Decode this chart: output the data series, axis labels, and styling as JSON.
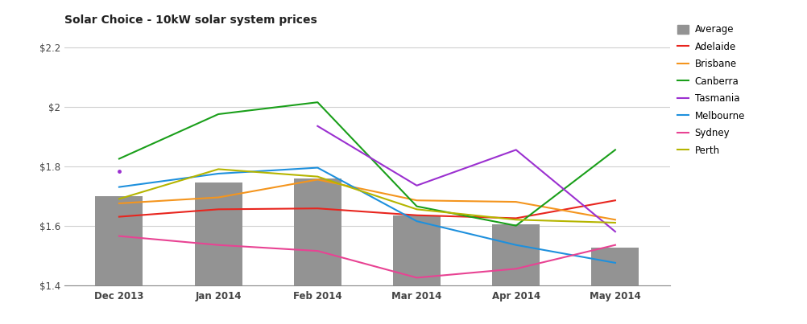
{
  "title": "Solar Choice - 10kW solar system prices",
  "x_labels": [
    "Dec 2013",
    "Jan 2014",
    "Feb 2014",
    "Mar 2014",
    "Apr 2014",
    "May 2014"
  ],
  "x_positions": [
    0,
    1,
    2,
    3,
    4,
    5
  ],
  "bar_values": [
    1.7,
    1.745,
    1.76,
    1.635,
    1.605,
    1.525
  ],
  "bar_color": "#939393",
  "lines": {
    "Adelaide": {
      "values": [
        1.63,
        1.655,
        1.658,
        1.635,
        1.625,
        1.685
      ],
      "color": "#e8251e",
      "segments": [
        [
          0,
          1,
          2,
          3,
          4,
          5
        ]
      ]
    },
    "Brisbane": {
      "values": [
        1.675,
        1.695,
        1.755,
        1.685,
        1.68,
        1.62
      ],
      "color": "#f4951e",
      "segments": [
        [
          0,
          1,
          2,
          3,
          4,
          5
        ]
      ]
    },
    "Canberra": {
      "values": [
        1.825,
        1.975,
        2.015,
        1.665,
        1.6,
        1.855
      ],
      "color": "#1a9f1a",
      "segments": [
        [
          0,
          1,
          2,
          3,
          4,
          5
        ]
      ]
    },
    "Tasmania": {
      "values": [
        1.783,
        null,
        1.935,
        1.735,
        1.855,
        1.58
      ],
      "color": "#9b30d0",
      "segments": [
        [
          2,
          3,
          4,
          5
        ]
      ]
    },
    "Melbourne": {
      "values": [
        1.73,
        1.775,
        1.795,
        1.615,
        1.535,
        1.475
      ],
      "color": "#1e90dd",
      "segments": [
        [
          0,
          1,
          2,
          3,
          4,
          5
        ]
      ]
    },
    "Sydney": {
      "values": [
        1.565,
        1.535,
        1.515,
        1.425,
        1.455,
        1.535
      ],
      "color": "#e84393",
      "segments": [
        [
          0,
          1,
          2,
          3,
          4,
          5
        ]
      ]
    },
    "Perth": {
      "values": [
        1.69,
        1.79,
        1.765,
        1.655,
        1.62,
        1.61
      ],
      "color": "#b5b500",
      "segments": [
        [
          0,
          1,
          2,
          3,
          4,
          5
        ]
      ]
    }
  },
  "ylim": [
    1.4,
    2.25
  ],
  "yticks": [
    1.4,
    1.6,
    1.8,
    2.0,
    2.2
  ],
  "ytick_labels": [
    "$1.4",
    "$1.6",
    "$1.8",
    "$2",
    "$2.2"
  ],
  "background_color": "#ffffff",
  "grid_color": "#d0d0d0",
  "title_fontsize": 10,
  "bar_width": 0.48,
  "legend_fontsize": 8.5,
  "axis_fontsize": 8.5,
  "linewidth": 1.5
}
